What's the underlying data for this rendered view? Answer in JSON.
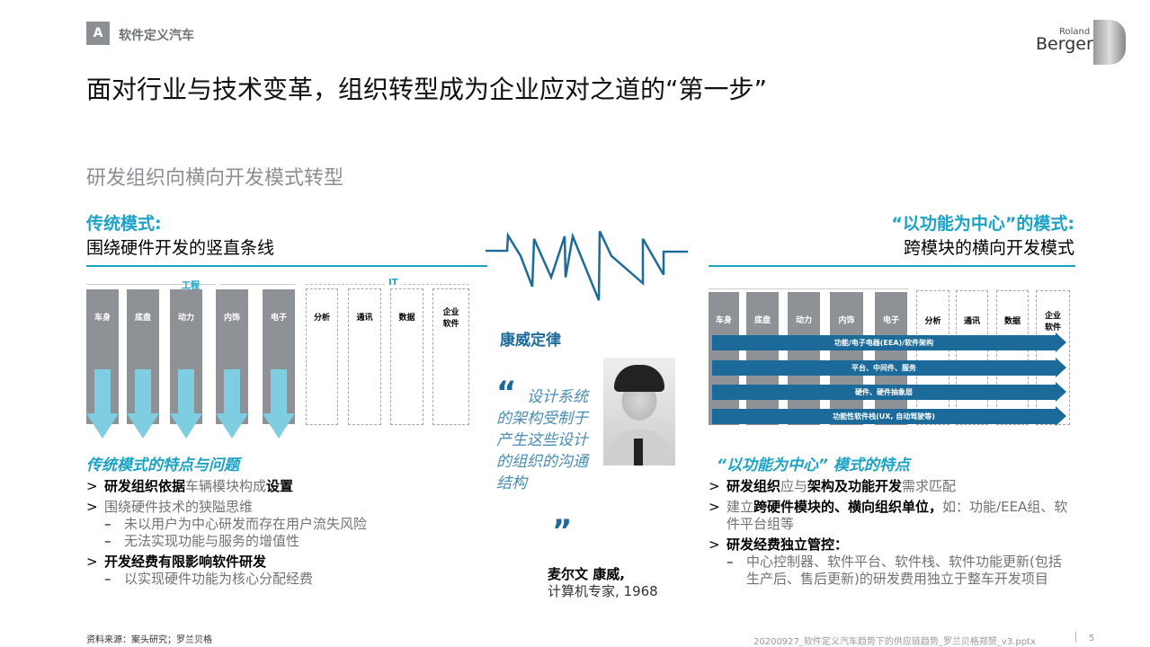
{
  "header": {
    "badge": "A",
    "section": "软件定义汽车",
    "title": "面对行业与技术变革，组织转型成为企业应对之道的“第一步”",
    "subtitle": "研发组织向横向开发模式转型",
    "logo_small": "Roland",
    "logo_big": "Berger"
  },
  "left": {
    "heading": "传统模式:",
    "subheading": "围绕硬件开发的竖直条线",
    "group_eng": "工程",
    "group_it": "IT",
    "eng_columns": [
      "车身",
      "底盘",
      "动力",
      "内饰",
      "电子"
    ],
    "it_columns": [
      "分析",
      "通讯",
      "数据",
      "企业\n软件"
    ],
    "features_title": "传统模式的特点与问题",
    "features": [
      {
        "type": "bullet",
        "parts": [
          {
            "t": "研发组织依据",
            "b": true
          },
          {
            "t": "车辆模块构成",
            "b": false
          },
          {
            "t": "设置",
            "b": true
          }
        ]
      },
      {
        "type": "bullet",
        "parts": [
          {
            "t": "围绕硬件技术的狭隘思维",
            "b": false
          }
        ]
      },
      {
        "type": "dash",
        "parts": [
          {
            "t": "未以用户为中心研发而存在用户流失风险",
            "b": false
          }
        ]
      },
      {
        "type": "dash",
        "parts": [
          {
            "t": "无法实现功能与服务的增值性",
            "b": false
          }
        ]
      },
      {
        "type": "bullet",
        "parts": [
          {
            "t": "开发经费有限影响软件研发",
            "b": true
          }
        ]
      },
      {
        "type": "dash",
        "parts": [
          {
            "t": "以实现硬件功能为核心分配经费",
            "b": false
          }
        ]
      }
    ]
  },
  "middle": {
    "law": "康威定律",
    "quote": "设计系统的架构受制于产生这些设计的组织的沟通结构",
    "author": "麦尔文 康威,",
    "author_desc": "计算机专家, 1968"
  },
  "right": {
    "heading": "“以功能为中心”的模式:",
    "subheading": "跨模块的横向开发模式",
    "eng_columns": [
      "车身",
      "底盘",
      "动力",
      "内饰",
      "电子"
    ],
    "it_columns": [
      "分析",
      "通讯",
      "数据",
      "企业\n软件"
    ],
    "bars": [
      "功能/电子电器(EEA)/软件架构",
      "平台、中间件、服务",
      "硬件、硬件抽象层",
      "功能性软件栈(UX, 自动驾驶等)"
    ],
    "features_title": "“以功能为中心” 模式的特点",
    "features": [
      {
        "type": "bullet",
        "parts": [
          {
            "t": "研发组织",
            "b": true
          },
          {
            "t": "应与",
            "b": false
          },
          {
            "t": "架构及功能开发",
            "b": true
          },
          {
            "t": "需求匹配",
            "b": false
          }
        ]
      },
      {
        "type": "bullet",
        "parts": [
          {
            "t": "建立",
            "b": false
          },
          {
            "t": "跨硬件模块的、横向组织单位，",
            "b": true
          },
          {
            "t": "如：功能/EEA组、软件平台组等",
            "b": false
          }
        ]
      },
      {
        "type": "bullet",
        "parts": [
          {
            "t": "研发经费独立管控：",
            "b": true
          }
        ]
      },
      {
        "type": "dash",
        "parts": [
          {
            "t": "中心控制器、软件平台、软件栈、软件功能更新(包括生产后、售后更新)的研发费用独立于整车开发项目",
            "b": false
          }
        ]
      }
    ]
  },
  "footer": {
    "source": "资料来源：案头研究；罗兰贝格",
    "file": "20200927_软件定义汽车趋势下的供应链趋势_罗兰贝格郑赟_v3.pptx",
    "page": "5"
  },
  "colors": {
    "accent": "#1ba3c6",
    "dark_blue": "#1b6a9a",
    "grey": "#8e9297",
    "light_blue": "#7fcde0"
  }
}
